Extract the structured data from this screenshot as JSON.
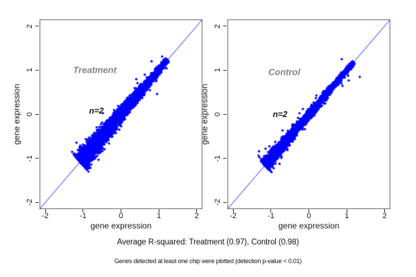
{
  "figure_kind": "paired gene-expression replicate scatter plots (R graphics style)",
  "colors": {
    "point": "#0000ff",
    "identity_line": "#2222f0",
    "frame": "#666666",
    "tick": "#333333",
    "text": "#1a1a1a",
    "panel_title_gray": "#848484",
    "background": "#ffffff"
  },
  "chart_data": [
    {
      "type": "scatter",
      "panel": "treatment",
      "title": "Treatment",
      "title_color": "#848484",
      "title_pos": {
        "x": -0.69,
        "y": 1.0
      },
      "annotation": {
        "text": "n=2",
        "x": -0.65,
        "y": 0.08
      },
      "xlabel": "gene expression",
      "ylabel": "gene expression",
      "xlim": [
        -2.15,
        2.15
      ],
      "ylim": [
        -2.15,
        2.15
      ],
      "xticks": [
        -2,
        -1,
        0,
        1,
        2
      ],
      "yticks": [
        -2,
        -1,
        0,
        1,
        2
      ],
      "identity_line": true,
      "grid": false,
      "r_squared": 0.97,
      "cloud": {
        "description": "dense blue cloud of gene expression values along y=x",
        "n_points": 4200,
        "along_min": -1.08,
        "along_max": 1.23,
        "skew_exponent": 1.55,
        "perp_sd_low_end": 0.095,
        "perp_sd_high_end": 0.028,
        "outlier_fraction": 0.013,
        "outlier_sd": 0.16,
        "seed": 20240917
      }
    },
    {
      "type": "scatter",
      "panel": "control",
      "title": "Control",
      "title_color": "#848484",
      "title_pos": {
        "x": -0.65,
        "y": 0.95
      },
      "annotation": {
        "text": "n=2",
        "x": -0.76,
        "y": 0.0
      },
      "xlabel": "gene expression",
      "ylabel": "gene expression",
      "xlim": [
        -2.15,
        2.15
      ],
      "ylim": [
        -2.15,
        2.15
      ],
      "xticks": [
        -2,
        -1,
        0,
        1,
        2
      ],
      "yticks": [
        -2,
        -1,
        0,
        1,
        2
      ],
      "identity_line": true,
      "grid": false,
      "r_squared": 0.98,
      "cloud": {
        "description": "tighter dense blue cloud of gene expression values along y=x",
        "n_points": 4200,
        "along_min": -1.16,
        "along_max": 1.18,
        "skew_exponent": 1.5,
        "perp_sd_low_end": 0.062,
        "perp_sd_high_end": 0.02,
        "outlier_fraction": 0.013,
        "outlier_sd": 0.14,
        "seed": 777123
      }
    }
  ],
  "captions": {
    "summary": "Average R-squared: Treatment (0.97), Control (0.98)",
    "footnote": "Genes detected at least one chip were plotted (detection p-value < 0.01)"
  }
}
